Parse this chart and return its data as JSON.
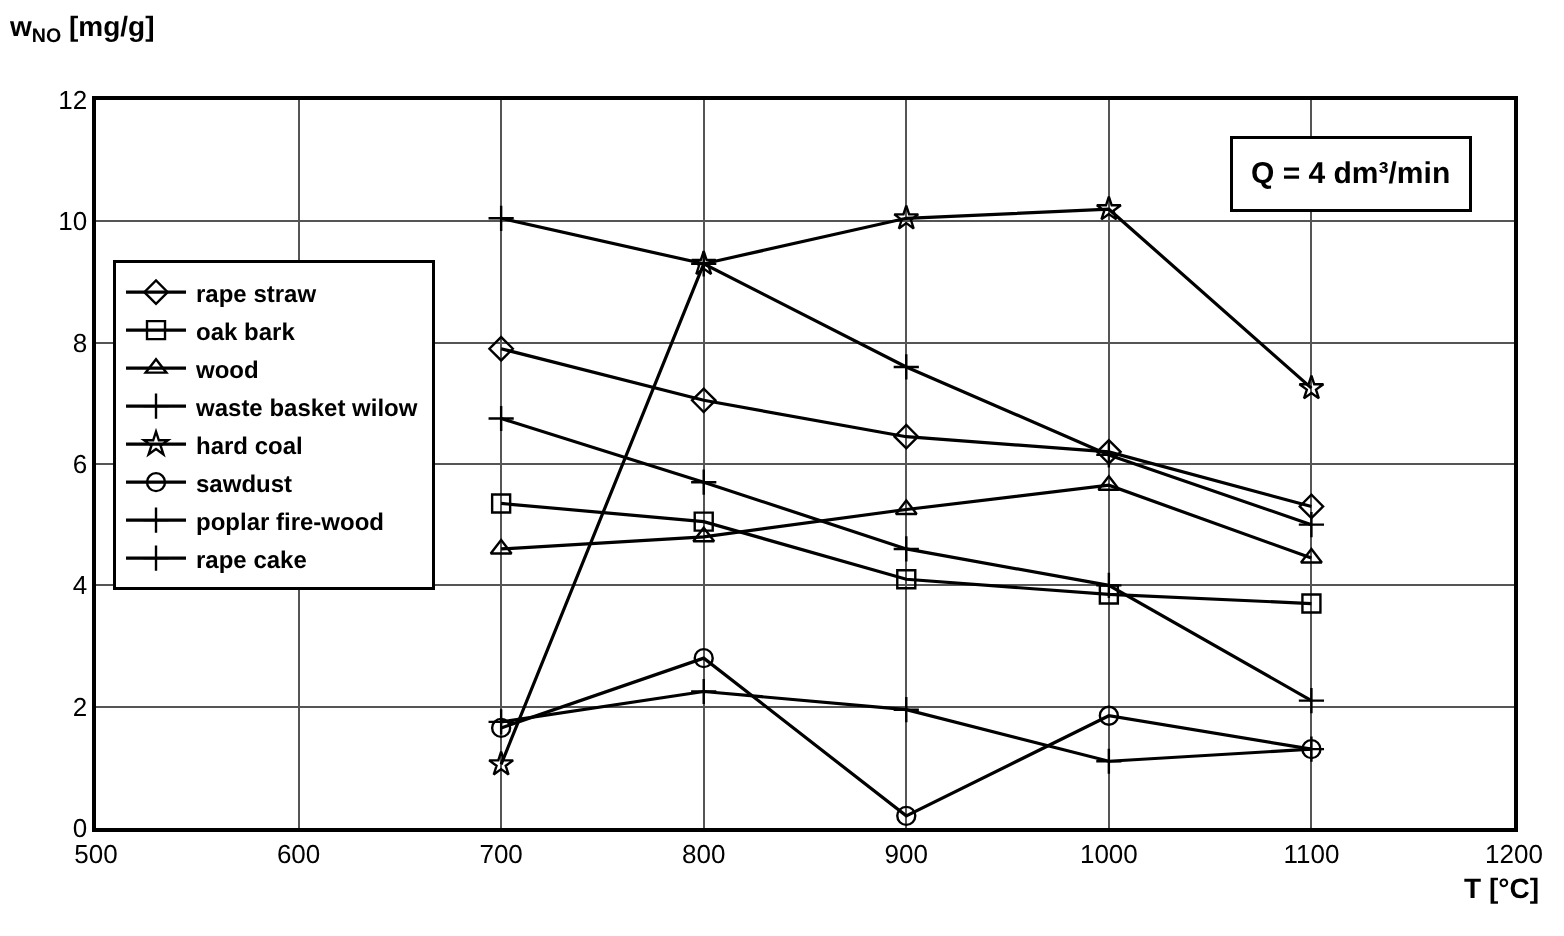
{
  "chart_data": {
    "type": "line",
    "x": [
      700,
      800,
      900,
      1000,
      1100
    ],
    "series": [
      {
        "name": "rape straw",
        "color": "#000000",
        "marker": "diamond",
        "values": [
          7.9,
          7.05,
          6.45,
          6.2,
          5.3
        ]
      },
      {
        "name": "oak bark",
        "color": "#000000",
        "marker": "square",
        "values": [
          5.35,
          5.05,
          4.1,
          3.85,
          3.7
        ]
      },
      {
        "name": "wood",
        "color": "#000000",
        "marker": "triangle",
        "values": [
          4.6,
          4.8,
          5.25,
          5.65,
          4.45
        ]
      },
      {
        "name": "waste basket wilow",
        "color": "#000000",
        "marker": "cross",
        "values": [
          6.75,
          5.7,
          4.6,
          4.0,
          2.1
        ]
      },
      {
        "name": "hard coal",
        "color": "#000000",
        "marker": "star",
        "values": [
          1.05,
          9.3,
          10.05,
          10.2,
          7.25
        ]
      },
      {
        "name": "sawdust",
        "color": "#000000",
        "marker": "circle",
        "values": [
          1.65,
          2.8,
          0.2,
          1.85,
          1.3
        ]
      },
      {
        "name": "poplar fire-wood",
        "color": "#000000",
        "marker": "cross",
        "values": [
          1.75,
          2.25,
          1.95,
          1.1,
          1.3
        ]
      },
      {
        "name": "rape cake",
        "color": "#000000",
        "marker": "cross",
        "values": [
          10.05,
          9.3,
          7.6,
          6.15,
          5.0
        ]
      }
    ],
    "xlabel": "T [°C]",
    "ylabel": "w$_{NO}$ [mg/g]",
    "annotations": [
      "Q = 4 dm³/min"
    ],
    "xlim": [
      500,
      1200
    ],
    "xticks": [
      500,
      600,
      700,
      800,
      900,
      1000,
      1100,
      1200
    ],
    "ylim": [
      0,
      12
    ],
    "yticks": [
      0,
      2,
      4,
      6,
      8,
      10,
      12
    ],
    "grid": true,
    "legend": "left"
  }
}
